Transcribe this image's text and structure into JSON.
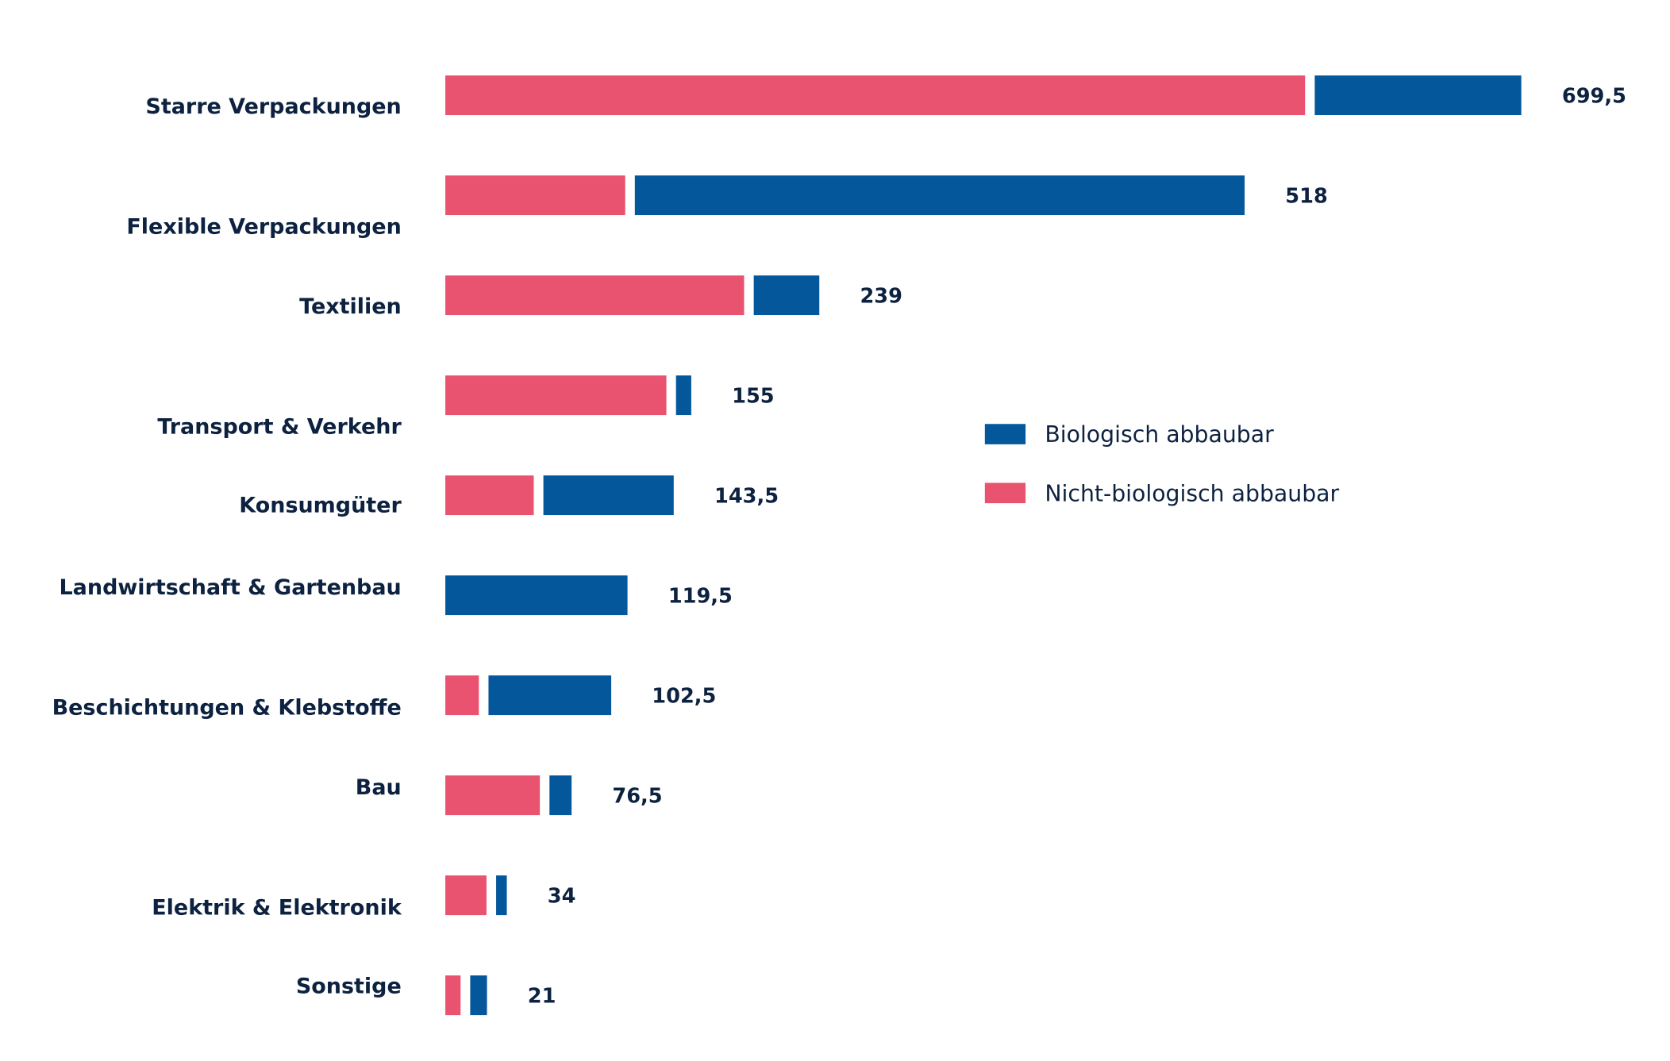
{
  "chart_data": {
    "type": "bar",
    "orientation": "horizontal",
    "stacked": true,
    "title": "",
    "xlabel": "",
    "ylabel": "",
    "grid": false,
    "legend_position": "right",
    "categories": [
      "Starre Verpackungen",
      "Flexible Verpackungen",
      "Textilien",
      "Transport & Verkehr",
      "Konsumgüter",
      "Landwirtschaft & Gartenbau",
      "Beschichtungen & Klebstoffe",
      "Bau",
      "Elektrik & Elektronik",
      "Sonstige"
    ],
    "totals": [
      699.5,
      518,
      239,
      155,
      143.5,
      119.5,
      102.5,
      76.5,
      34,
      21
    ],
    "total_labels": [
      "699,5",
      "518",
      "239",
      "155",
      "143,5",
      "119,5",
      "102,5",
      "76,5",
      "34",
      "21"
    ],
    "series": [
      {
        "name": "Nicht-biologisch abbaubar",
        "color": "#E9536F",
        "values": [
          564,
          118,
          196,
          145,
          58,
          0,
          22,
          62,
          27,
          10
        ]
      },
      {
        "name": "Biologisch abbaubar",
        "color": "#04579B",
        "values": [
          135.5,
          400,
          43,
          10,
          85.5,
          119.5,
          80.5,
          14.5,
          7,
          11
        ]
      }
    ],
    "legend": [
      {
        "label": "Biologisch abbaubar",
        "color": "#04579B"
      },
      {
        "label": "Nicht-biologisch abbaubar",
        "color": "#E9536F"
      }
    ]
  }
}
